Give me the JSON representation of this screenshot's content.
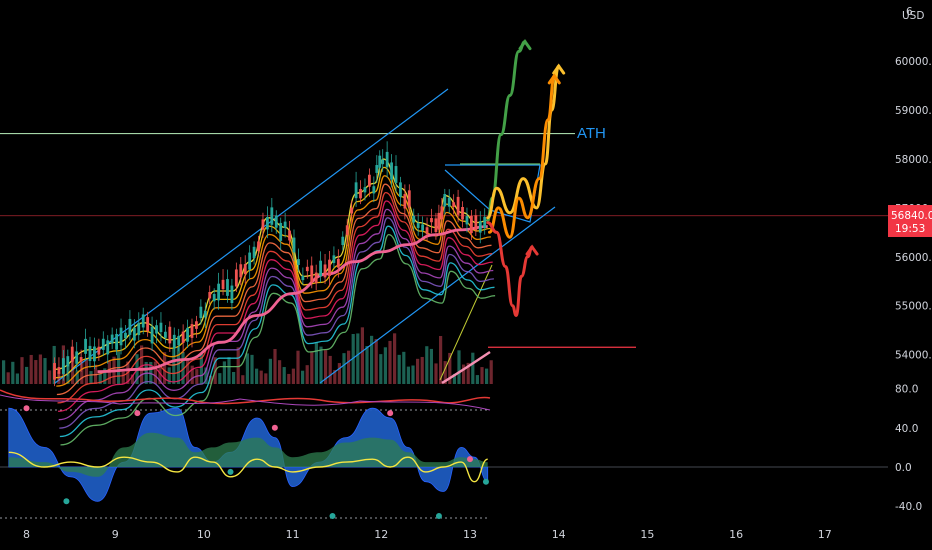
{
  "header": {
    "currency": "USD",
    "top_tick": "6"
  },
  "price_axis": {
    "ticks": [
      "60000.0",
      "59000.0",
      "58000.0",
      "57000.0",
      "56000.0",
      "55000.0",
      "54000.0"
    ],
    "current_price": "56840.0",
    "countdown": "19:53"
  },
  "oscillator_axis": {
    "ticks": [
      "80.0",
      "40.0",
      "0.0",
      "-40.0"
    ]
  },
  "x_axis": {
    "ticks": [
      "8",
      "9",
      "10",
      "11",
      "12",
      "13",
      "14",
      "15",
      "16",
      "17"
    ]
  },
  "annotations": {
    "ath_label": "ATH"
  },
  "colors": {
    "background": "#000000",
    "ath_line": "#a5d6a7",
    "channel": "#2196f3",
    "ma_slow": "#f06292",
    "price_tag": "#f23645",
    "support_line": "#f23645",
    "osc_blue": "#1e5bbf",
    "osc_green": "#2e7d4f",
    "osc_yellow": "#f5e642",
    "arrow_green": "#43a047",
    "arrow_yellow": "#fbc02d",
    "arrow_orange": "#fb8c00",
    "arrow_red": "#e53935"
  },
  "chart_data": [
    {
      "type": "line",
      "title": "",
      "xlabel": "",
      "ylabel": "USD",
      "x_range": [
        7.8,
        17.5
      ],
      "ylim": [
        53600,
        60800
      ],
      "levels": {
        "ath": 58520,
        "current": 56840,
        "support": 54150
      },
      "ma_slow": {
        "x": [
          8.8,
          9.3,
          9.8,
          10.2,
          10.6,
          11.0,
          11.4,
          11.7,
          12.0,
          12.3,
          12.6,
          12.9,
          13.2
        ],
        "y": [
          53650,
          53700,
          53900,
          54250,
          54800,
          55250,
          55650,
          55900,
          56100,
          56250,
          56450,
          56550,
          56620
        ]
      },
      "price_path": {
        "x": [
          8.3,
          8.7,
          9.0,
          9.3,
          9.6,
          9.9,
          10.1,
          10.3,
          10.5,
          10.7,
          10.9,
          11.1,
          11.3,
          11.5,
          11.7,
          11.9,
          12.0,
          12.2,
          12.4,
          12.6,
          12.7,
          12.9,
          13.05,
          13.2
        ],
        "y": [
          53700,
          54100,
          54250,
          54650,
          54300,
          54600,
          55300,
          55300,
          55900,
          56800,
          56600,
          55600,
          55650,
          56000,
          57300,
          57500,
          58000,
          57400,
          56700,
          56600,
          57250,
          56900,
          56700,
          56750
        ]
      },
      "annotation_arrows": [
        {
          "color": "green",
          "x": [
            13.2,
            13.25,
            13.35,
            13.45,
            13.55,
            13.62
          ],
          "y": [
            56750,
            57200,
            58500,
            59300,
            60200,
            60400
          ]
        },
        {
          "color": "yellow",
          "x": [
            13.2,
            13.3,
            13.45,
            13.6,
            13.75,
            13.85,
            13.92,
            14.0
          ],
          "y": [
            56800,
            57400,
            56900,
            57600,
            57000,
            57900,
            59000,
            59900
          ]
        },
        {
          "color": "orange",
          "x": [
            13.22,
            13.32,
            13.45,
            13.55,
            13.65,
            13.78,
            13.88,
            13.95
          ],
          "y": [
            56500,
            57000,
            56400,
            57200,
            56800,
            57600,
            58800,
            59700
          ]
        },
        {
          "color": "red",
          "x": [
            13.2,
            13.3,
            13.4,
            13.48,
            13.52,
            13.58,
            13.65,
            13.7
          ],
          "y": [
            56700,
            56500,
            55800,
            55000,
            54800,
            55600,
            56000,
            56200
          ]
        }
      ]
    },
    {
      "type": "area",
      "title": "",
      "xlabel": "",
      "ylabel": "",
      "ylim": [
        -48,
        90
      ],
      "x": [
        7.8,
        8.2,
        8.5,
        8.8,
        9.1,
        9.4,
        9.7,
        9.9,
        10.1,
        10.3,
        10.6,
        10.8,
        11.0,
        11.3,
        11.6,
        11.9,
        12.1,
        12.3,
        12.5,
        12.7,
        12.9,
        13.05,
        13.2
      ],
      "series": [
        {
          "name": "",
          "values": [
            60,
            20,
            -10,
            -35,
            5,
            55,
            60,
            20,
            5,
            15,
            50,
            30,
            -20,
            5,
            30,
            60,
            50,
            20,
            -15,
            -25,
            20,
            10,
            -15
          ]
        },
        {
          "name": "",
          "values": [
            10,
            5,
            -5,
            -10,
            20,
            35,
            30,
            15,
            20,
            25,
            30,
            20,
            10,
            15,
            25,
            30,
            28,
            15,
            5,
            5,
            10,
            8,
            5
          ]
        },
        {
          "name": "",
          "values": [
            15,
            0,
            5,
            0,
            10,
            5,
            -5,
            10,
            5,
            -10,
            8,
            0,
            -5,
            0,
            5,
            8,
            0,
            10,
            -5,
            0,
            5,
            -15,
            8
          ]
        }
      ]
    }
  ]
}
